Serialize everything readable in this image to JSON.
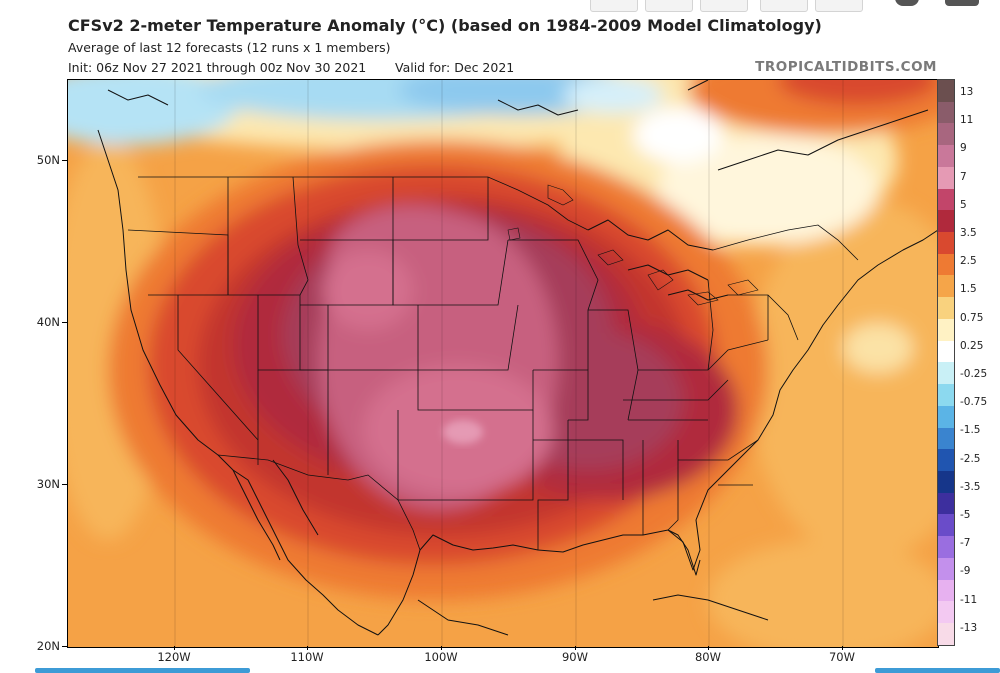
{
  "header": {
    "title": "CFSv2 2-meter Temperature Anomaly (°C) (based on 1984-2009 Model Climatology)",
    "subtitle": "Average of last 12 forecasts (12 runs x 1 members)",
    "init": "Init: 06z Nov 27 2021 through 00z Nov 30 2021",
    "valid": "Valid for: Dec 2021",
    "brand": "TROPICALTIDBITS.COM"
  },
  "axes": {
    "lat_labels": [
      "50N",
      "40N",
      "30N",
      "20N"
    ],
    "lon_labels": [
      "120W",
      "110W",
      "100W",
      "90W",
      "80W",
      "70W"
    ]
  },
  "colorbar": {
    "labels": [
      "13",
      "11",
      "9",
      "7",
      "5",
      "3.5",
      "2.5",
      "1.5",
      "0.75",
      "0.25",
      "-0.25",
      "-0.75",
      "-1.5",
      "-2.5",
      "-3.5",
      "-5",
      "-7",
      "-9",
      "-11",
      "-13"
    ],
    "colors": [
      "#6b4f4f",
      "#8a5c6a",
      "#a8667f",
      "#c9789a",
      "#e59ab4",
      "#c2456a",
      "#b0293c",
      "#d9492f",
      "#ee7a33",
      "#f5a549",
      "#f9d27e",
      "#fff2c4",
      "#ffffff",
      "#c9f0f6",
      "#8cd9ef",
      "#5bb4e6",
      "#3a84cf",
      "#2055b0",
      "#16368a",
      "#3d2f9e",
      "#6a4cc9",
      "#9a6ee0",
      "#c390ec",
      "#e7b1f0",
      "#f3c9f2",
      "#f8dbe8"
    ]
  },
  "map": {
    "colors": {
      "ocean_warm": "#f5a246",
      "cold": "#8dc9ee",
      "core": "#c7617f"
    },
    "lat_range": [
      20,
      55
    ],
    "lon_range": [
      -128,
      -63
    ]
  }
}
